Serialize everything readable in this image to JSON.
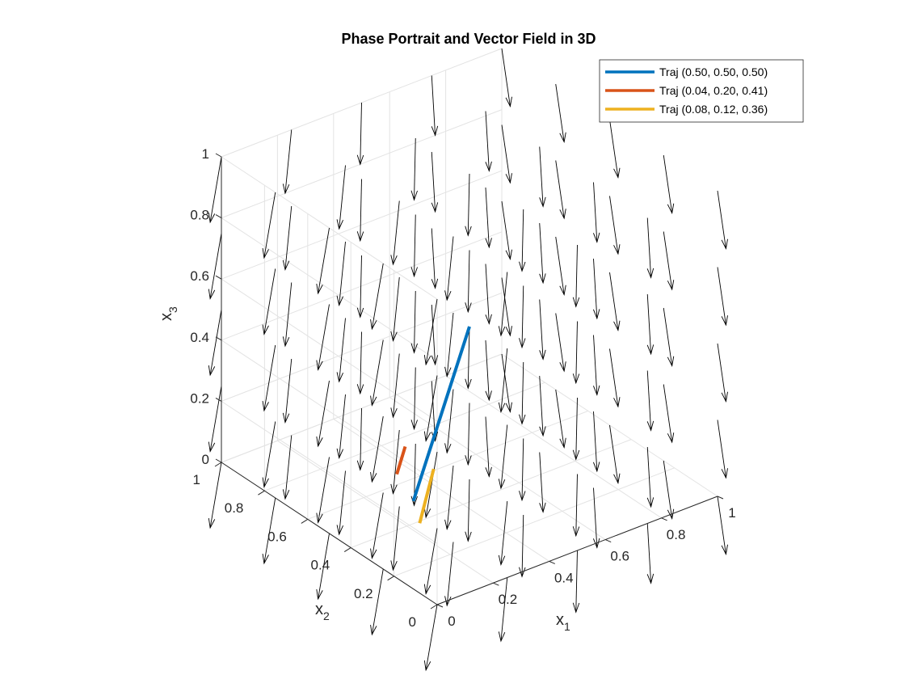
{
  "chart_data": {
    "type": "vector-field-3d",
    "title": "Phase Portrait and Vector Field in 3D",
    "xlabel": "x",
    "xlabel_sub": "1",
    "ylabel": "x",
    "ylabel_sub": "2",
    "zlabel": "x",
    "zlabel_sub": "3",
    "xlim": [
      0,
      1
    ],
    "ylim": [
      0,
      1
    ],
    "zlim": [
      0,
      1
    ],
    "x_ticks": [
      "0",
      "0.2",
      "0.4",
      "0.6",
      "0.8",
      "1"
    ],
    "y_ticks": [
      "0",
      "0.2",
      "0.4",
      "0.6",
      "0.8",
      "1"
    ],
    "z_ticks": [
      "0",
      "0.2",
      "0.4",
      "0.6",
      "0.8",
      "1"
    ],
    "grid": true,
    "legend_position": "top-right",
    "field": {
      "grid_values": [
        0,
        0.25,
        0.5,
        0.75,
        1.0
      ],
      "direction_description": "arrows point downward (decreasing x3) with small x1/x2 components"
    },
    "series": [
      {
        "name": "Traj (0.50, 0.50, 0.50)",
        "color": "#0072BD",
        "start": [
          0.5,
          0.5,
          0.5
        ],
        "end": [
          0.3,
          0.5,
          0.0
        ]
      },
      {
        "name": "Traj (0.04, 0.20, 0.41)",
        "color": "#D95319",
        "start": [
          0.04,
          0.2,
          0.41
        ],
        "end": [
          0.01,
          0.2,
          0.33
        ]
      },
      {
        "name": "Traj (0.08, 0.12, 0.36)",
        "color": "#EDB120",
        "start": [
          0.08,
          0.12,
          0.36
        ],
        "end": [
          0.03,
          0.12,
          0.2
        ]
      }
    ]
  }
}
